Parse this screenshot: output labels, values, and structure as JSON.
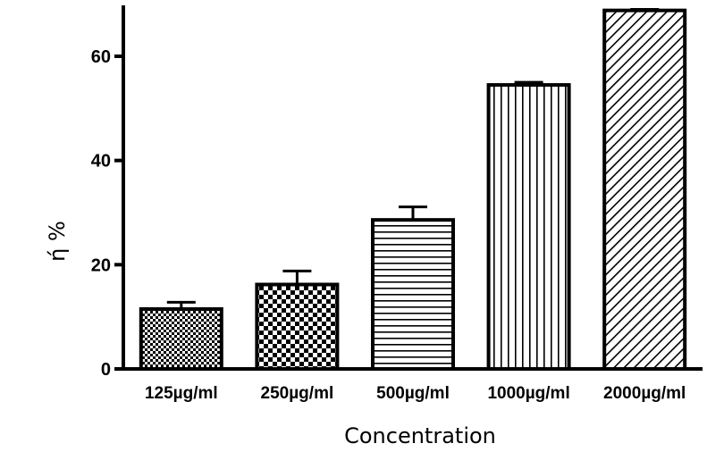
{
  "chart_data": {
    "type": "bar",
    "title": "",
    "xlabel": "Concentration",
    "ylabel": "ή %",
    "categories": [
      "125µg/ml",
      "250µg/ml",
      "500µg/ml",
      "1000µg/ml",
      "2000µg/ml"
    ],
    "values": [
      11.5,
      16.2,
      28.6,
      54.5,
      68.8
    ],
    "errors": [
      1.3,
      2.6,
      2.5,
      0.5,
      0.2
    ],
    "patterns": [
      "fine-checker",
      "checker",
      "horizontal-lines",
      "vertical-lines",
      "diagonal-lines"
    ],
    "yticks": [
      0,
      20,
      40,
      60
    ],
    "ylim": [
      0,
      70
    ],
    "grid": false,
    "legend": "none",
    "bar_fill": "#ffffff",
    "bar_stroke": "#000000"
  }
}
